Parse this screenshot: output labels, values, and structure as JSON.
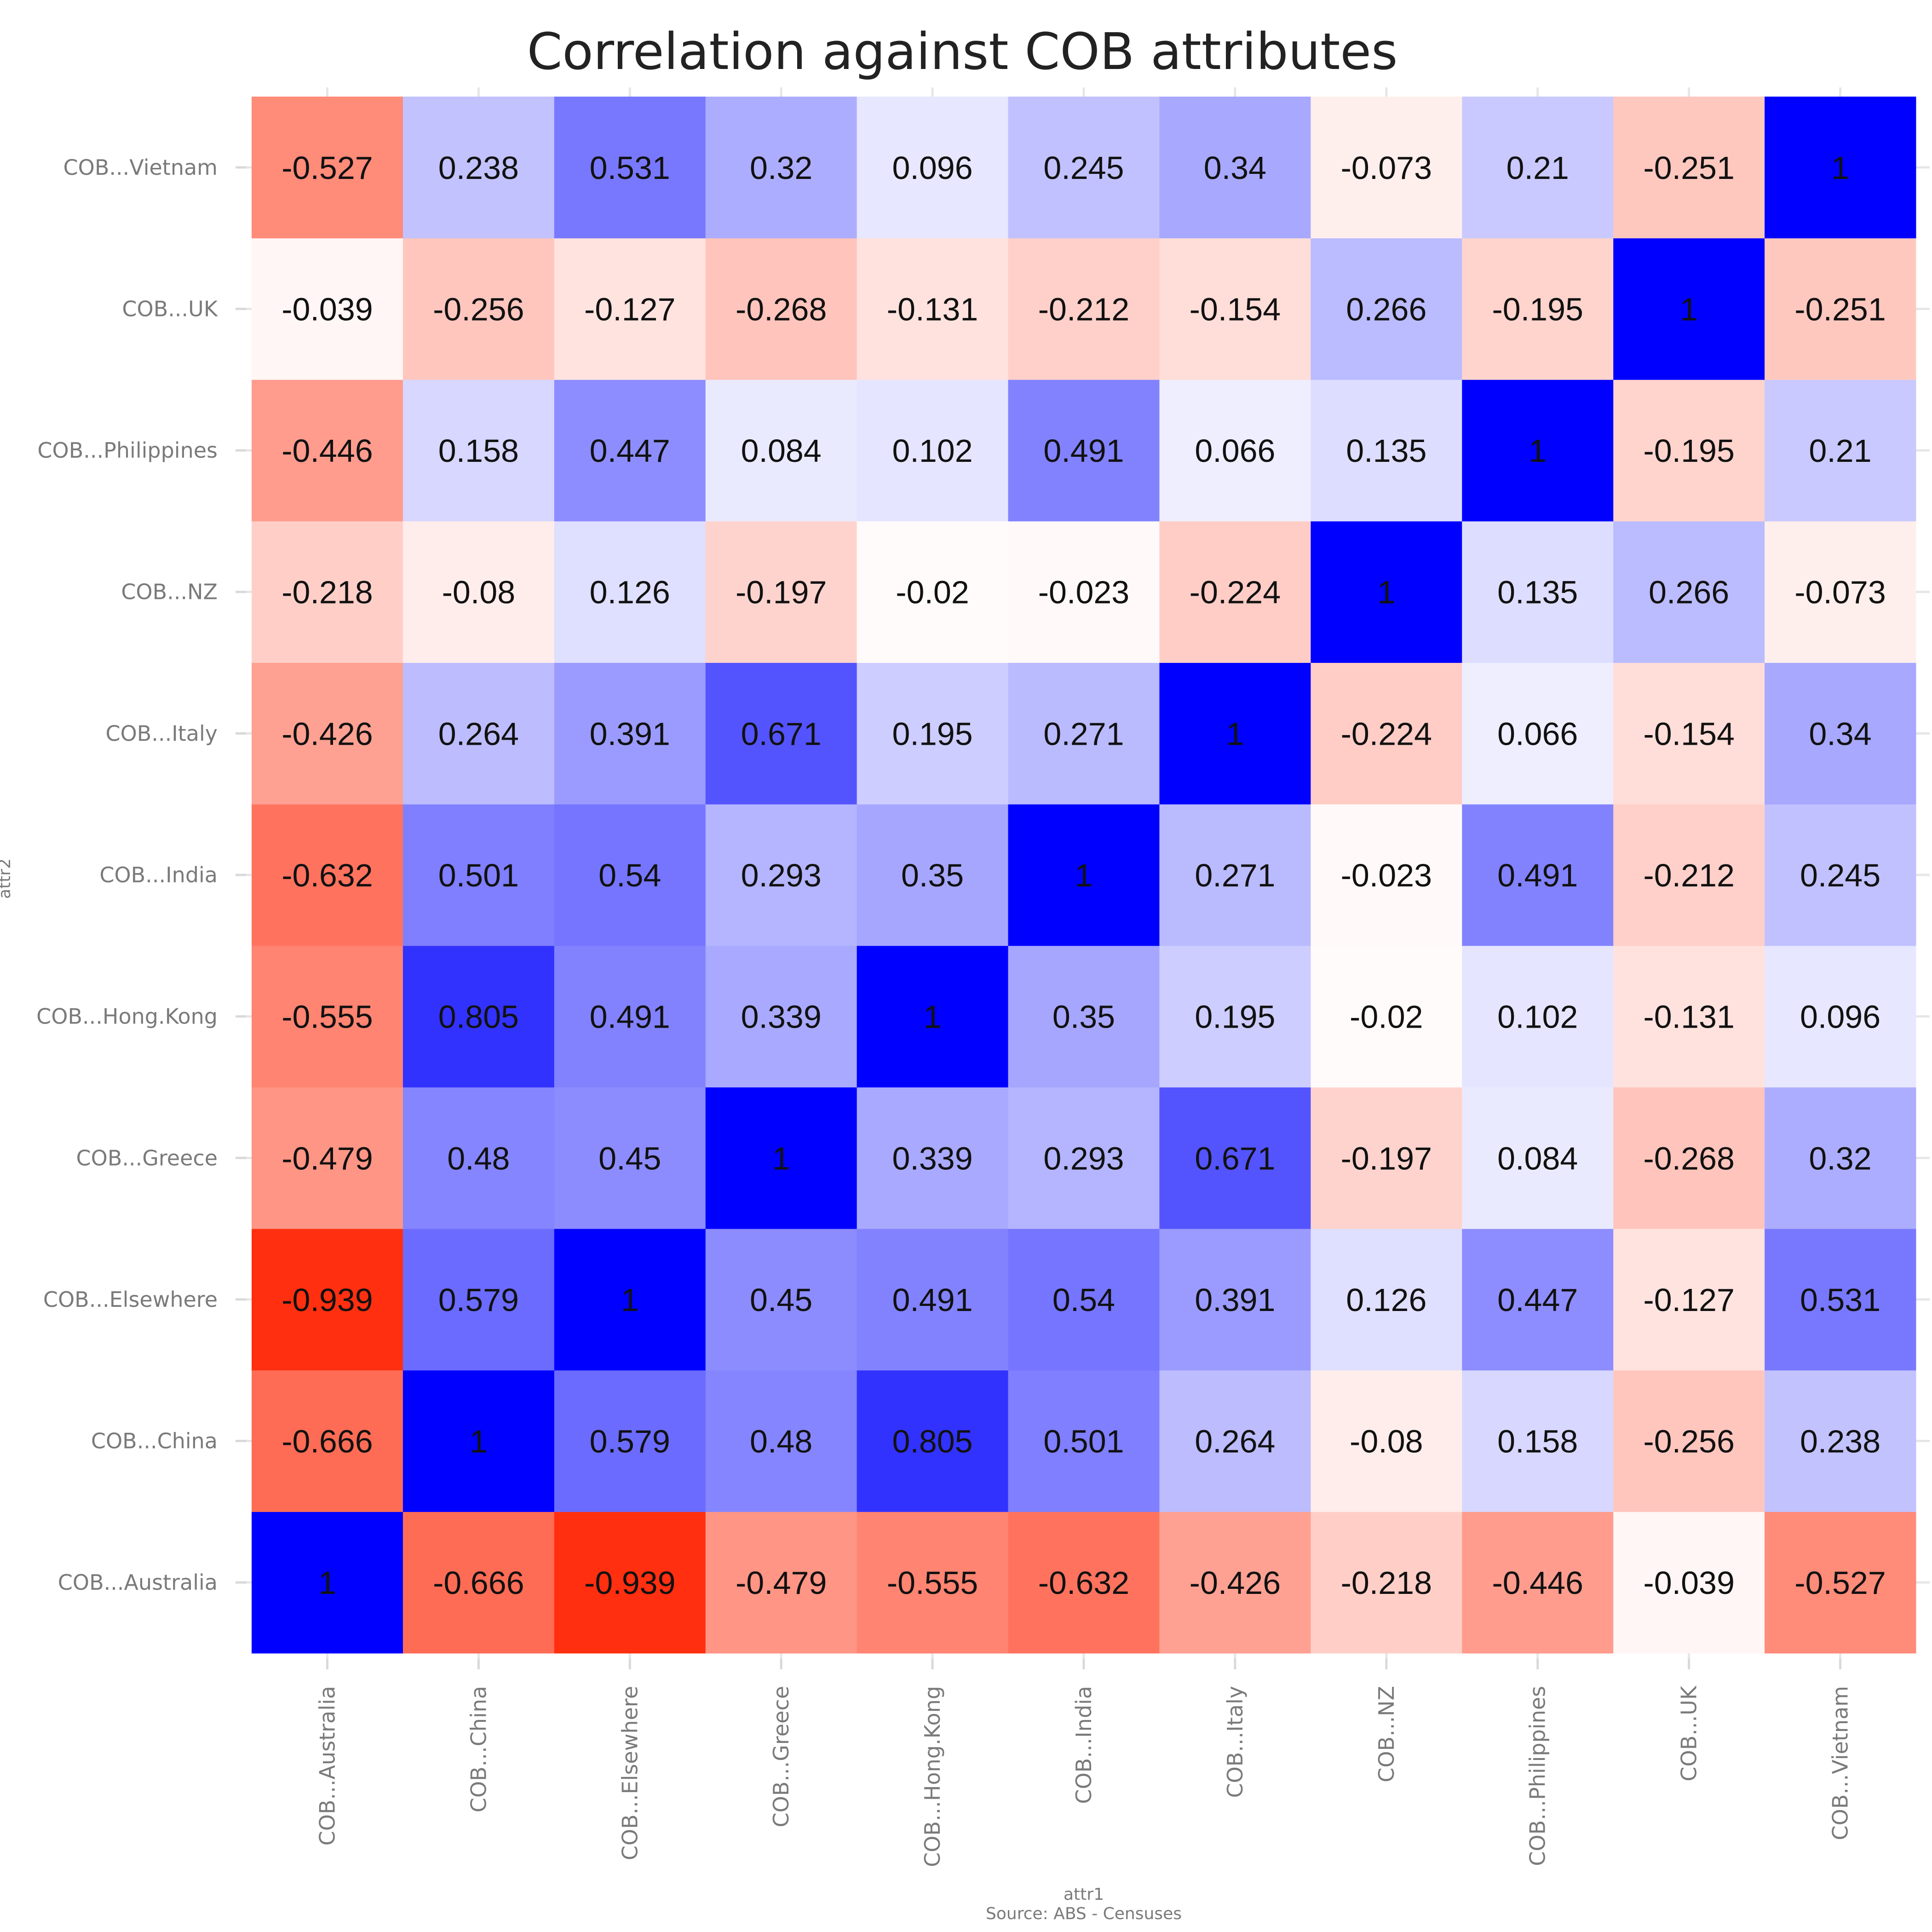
{
  "chart_data": {
    "type": "heatmap",
    "title": "Correlation against COB attributes",
    "xlabel": "attr1",
    "ylabel": "attr2",
    "caption": "Source: ABS - Censuses",
    "x_categories": [
      "COB...Australia",
      "COB...China",
      "COB...Elsewhere",
      "COB...Greece",
      "COB...Hong.Kong",
      "COB...India",
      "COB...Italy",
      "COB...NZ",
      "COB...Philippines",
      "COB...UK",
      "COB...Vietnam"
    ],
    "y_categories": [
      "COB...Australia",
      "COB...China",
      "COB...Elsewhere",
      "COB...Greece",
      "COB...Hong.Kong",
      "COB...India",
      "COB...Italy",
      "COB...NZ",
      "COB...Philippines",
      "COB...UK",
      "COB...Vietnam"
    ],
    "value_labels": [
      [
        "1",
        "-0.666",
        "-0.939",
        "-0.479",
        "-0.555",
        "-0.632",
        "-0.426",
        "-0.218",
        "-0.446",
        "-0.039",
        "-0.527"
      ],
      [
        "-0.666",
        "1",
        "0.579",
        "0.48",
        "0.805",
        "0.501",
        "0.264",
        "-0.08",
        "0.158",
        "-0.256",
        "0.238"
      ],
      [
        "-0.939",
        "0.579",
        "1",
        "0.45",
        "0.491",
        "0.54",
        "0.391",
        "0.126",
        "0.447",
        "-0.127",
        "0.531"
      ],
      [
        "-0.479",
        "0.48",
        "0.45",
        "1",
        "0.339",
        "0.293",
        "0.671",
        "-0.197",
        "0.084",
        "-0.268",
        "0.32"
      ],
      [
        "-0.555",
        "0.805",
        "0.491",
        "0.339",
        "1",
        "0.35",
        "0.195",
        "-0.02",
        "0.102",
        "-0.131",
        "0.096"
      ],
      [
        "-0.632",
        "0.501",
        "0.54",
        "0.293",
        "0.35",
        "1",
        "0.271",
        "-0.023",
        "0.491",
        "-0.212",
        "0.245"
      ],
      [
        "-0.426",
        "0.264",
        "0.391",
        "0.671",
        "0.195",
        "0.271",
        "1",
        "-0.224",
        "0.066",
        "-0.154",
        "0.34"
      ],
      [
        "-0.218",
        "-0.08",
        "0.126",
        "-0.197",
        "-0.02",
        "-0.023",
        "-0.224",
        "1",
        "0.135",
        "0.266",
        "-0.073"
      ],
      [
        "-0.446",
        "0.158",
        "0.447",
        "0.084",
        "0.102",
        "0.491",
        "0.066",
        "0.135",
        "1",
        "-0.195",
        "0.21"
      ],
      [
        "-0.039",
        "-0.256",
        "-0.127",
        "-0.268",
        "-0.131",
        "-0.212",
        "-0.154",
        "0.266",
        "-0.195",
        "1",
        "-0.251"
      ],
      [
        "-0.527",
        "0.238",
        "0.531",
        "0.32",
        "0.096",
        "0.245",
        "0.34",
        "-0.073",
        "0.21",
        "-0.251",
        "1"
      ]
    ],
    "color_scale": {
      "low": "#ff2200",
      "mid": "#ffffff",
      "high": "#0000ff",
      "domain": [
        -1,
        0,
        1
      ]
    },
    "legend": "none",
    "grid": true
  }
}
